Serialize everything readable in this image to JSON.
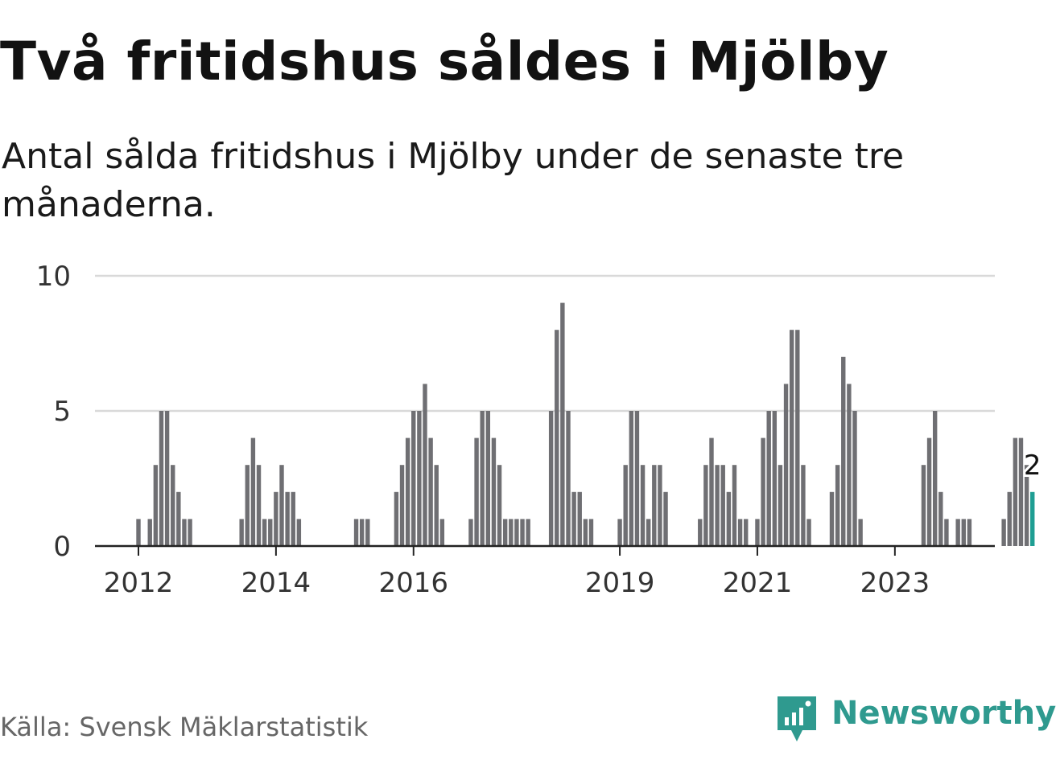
{
  "title": "Två fritidshus såldes i Mjölby",
  "subtitle": "Antal sålda fritidshus i Mjölby under de senaste tre månaderna.",
  "source": "Källa: Svensk Mäklarstatistik",
  "brand": {
    "name": "Newsworthy",
    "icon": "newsworthy-logo-icon"
  },
  "colors": {
    "bar": "#6f6f73",
    "highlight": "#1f9e93",
    "grid": "#d9d9d9",
    "axis": "#222222",
    "brand": "#2f9a8f"
  },
  "chart_data": {
    "type": "bar",
    "title": "Två fritidshus såldes i Mjölby",
    "subtitle": "Antal sålda fritidshus i Mjölby under de senaste tre månaderna.",
    "x_start": "2011-12",
    "frequency": "monthly",
    "values": [
      0,
      1,
      0,
      1,
      3,
      5,
      5,
      3,
      2,
      1,
      1,
      0,
      0,
      0,
      0,
      0,
      0,
      0,
      0,
      1,
      3,
      4,
      3,
      1,
      1,
      2,
      3,
      2,
      2,
      1,
      0,
      0,
      0,
      0,
      0,
      0,
      0,
      0,
      0,
      1,
      1,
      1,
      0,
      0,
      0,
      0,
      2,
      3,
      4,
      5,
      5,
      6,
      4,
      3,
      1,
      0,
      0,
      0,
      0,
      1,
      4,
      5,
      5,
      4,
      3,
      1,
      1,
      1,
      1,
      1,
      0,
      0,
      0,
      5,
      8,
      9,
      5,
      2,
      2,
      1,
      1,
      0,
      0,
      0,
      0,
      1,
      3,
      5,
      5,
      3,
      1,
      3,
      3,
      2,
      0,
      0,
      0,
      0,
      0,
      1,
      3,
      4,
      3,
      3,
      2,
      3,
      1,
      1,
      0,
      1,
      4,
      5,
      5,
      3,
      6,
      8,
      8,
      3,
      1,
      0,
      0,
      0,
      2,
      3,
      7,
      6,
      5,
      1,
      0,
      0,
      0,
      0,
      0,
      0,
      0,
      0,
      0,
      0,
      3,
      4,
      5,
      2,
      1,
      0,
      1,
      1,
      1,
      0,
      0,
      0,
      0,
      0,
      1,
      2,
      4,
      4,
      3,
      2
    ],
    "latest_value": 2,
    "data_label": "2",
    "xtick_labels": [
      "2012",
      "2014",
      "2016",
      "2019",
      "2021",
      "2023"
    ],
    "xtick_dates": [
      "2012-01",
      "2014-01",
      "2016-01",
      "2019-01",
      "2021-01",
      "2023-01"
    ],
    "yticks": [
      0,
      5,
      10
    ],
    "ylim": [
      0,
      10
    ],
    "grid": true,
    "legend": "none"
  }
}
